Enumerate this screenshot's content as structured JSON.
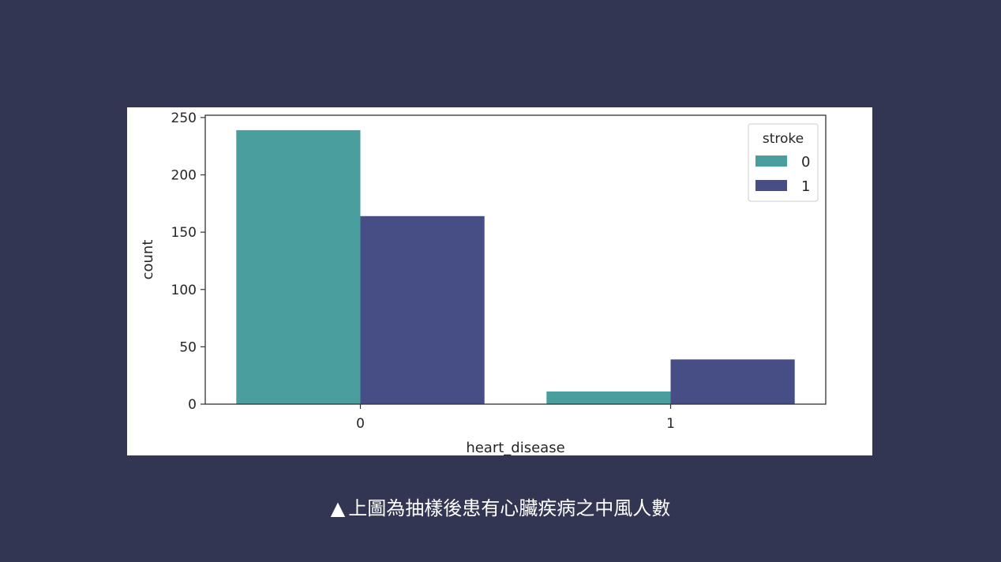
{
  "chart_data": {
    "type": "bar",
    "xlabel": "heart_disease",
    "ylabel": "count",
    "categories": [
      "0",
      "1"
    ],
    "ylim": [
      0,
      252
    ],
    "yticks": [
      0,
      50,
      100,
      150,
      200,
      250
    ],
    "legend": {
      "title": "stroke",
      "position": "top-right"
    },
    "series": [
      {
        "name": "0",
        "color": "#4a9e9e",
        "values": [
          239,
          11
        ]
      },
      {
        "name": "1",
        "color": "#474d85",
        "values": [
          164,
          39
        ]
      }
    ],
    "grid": false
  },
  "caption": {
    "marker": "▲",
    "text": "上圖為抽樣後患有心臟疾病之中風人數"
  }
}
